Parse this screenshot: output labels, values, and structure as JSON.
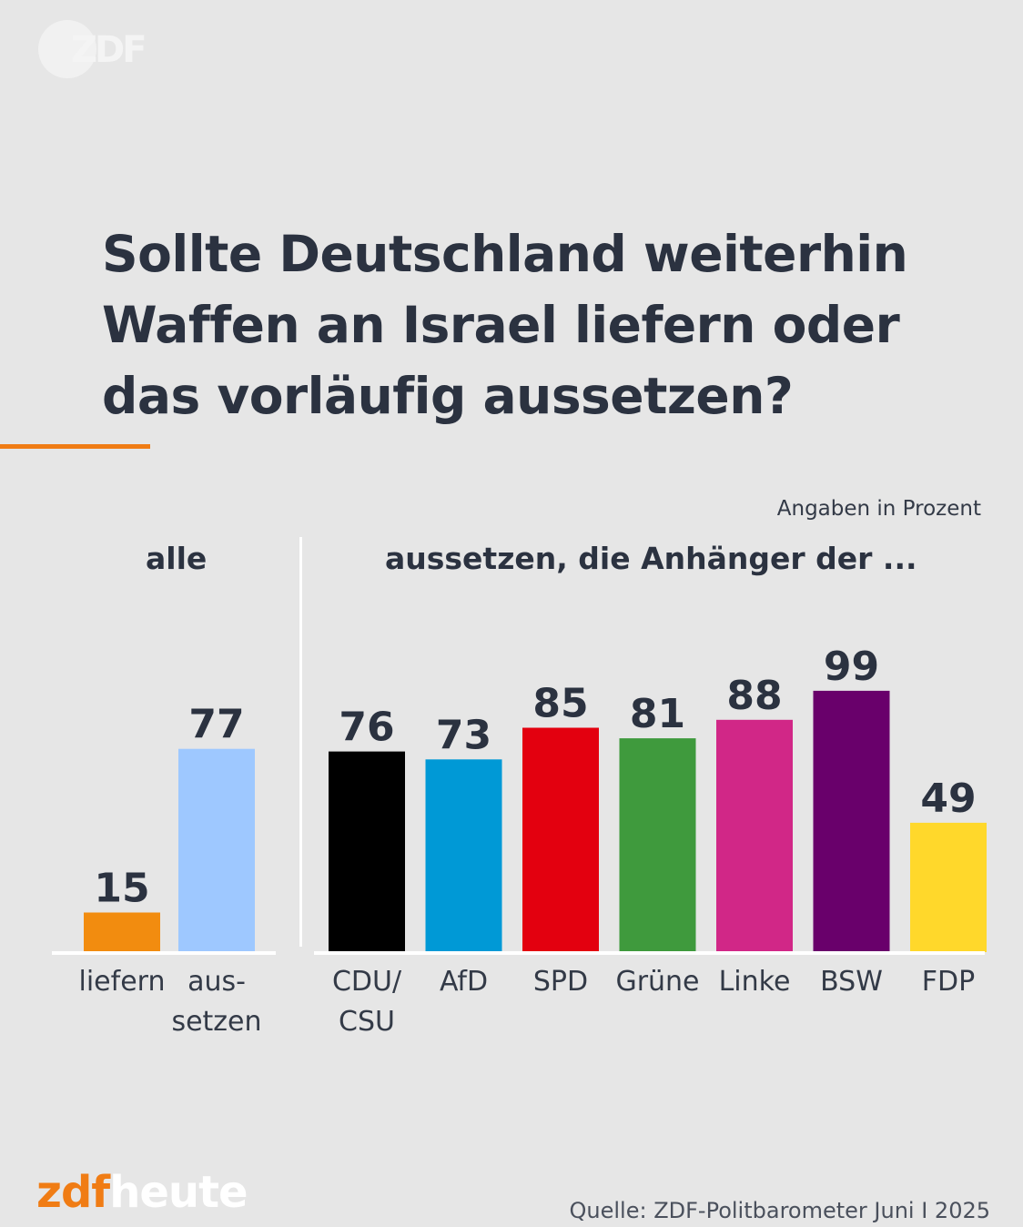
{
  "logo": {
    "text": "ZDF"
  },
  "title": "Sollte Deutschland weiterhin Waffen an Israel liefern oder das vorläufig aussetzen?",
  "unit_note": "Angaben in Prozent",
  "colors": {
    "liefern": "#f28c0f",
    "aussetzen": "#9ec8ff",
    "CDU/CSU": "#000000",
    "AfD": "#0099d6",
    "SPD": "#e3000f",
    "Grüne": "#3f9a3d",
    "Linke": "#d12787",
    "BSW": "#69006b",
    "FDP": "#ffd82b",
    "accent": "#f07c14"
  },
  "chart_data": [
    {
      "type": "bar",
      "title": "alle",
      "categories": [
        "liefern",
        "aus-\nsetzen"
      ],
      "values": [
        15,
        77
      ],
      "ylim": [
        0,
        100
      ]
    },
    {
      "type": "bar",
      "title": "aussetzen, die Anhänger der ...",
      "categories": [
        "CDU/\nCSU",
        "AfD",
        "SPD",
        "Grüne",
        "Linke",
        "BSW",
        "FDP"
      ],
      "values": [
        76,
        73,
        85,
        81,
        88,
        99,
        49
      ],
      "ylim": [
        0,
        100
      ]
    }
  ],
  "brand": {
    "part1": "zdf",
    "part2": "heute"
  },
  "source": "Quelle: ZDF-Politbarometer Juni I 2025"
}
